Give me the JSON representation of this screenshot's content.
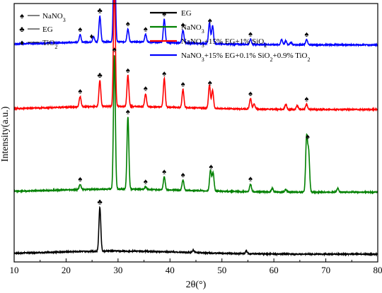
{
  "chart_data": {
    "type": "line",
    "xlabel": "2θ(°)",
    "ylabel": "Intensity(a.u.)",
    "xlim": [
      10,
      80
    ],
    "x_ticks": [
      10,
      20,
      30,
      40,
      50,
      60,
      70,
      80
    ],
    "y_ticks_shown": false,
    "grid": false,
    "legend_placement": "top-right",
    "series": [
      {
        "name": "NaNO<sub>3</sub>+15% EG+0.1% SiO<sub>2</sub>+0.9% TiO<sub>2</sub>",
        "color": "#0000ff",
        "baseline": 0.84,
        "peaks": [
          [
            22.7,
            0.03
          ],
          [
            25.3,
            0.02
          ],
          [
            26.5,
            0.1
          ],
          [
            29.3,
            0.42
          ],
          [
            31.9,
            0.05
          ],
          [
            35.3,
            0.03
          ],
          [
            38.9,
            0.09
          ],
          [
            42.5,
            0.05
          ],
          [
            47.6,
            0.08
          ],
          [
            48.2,
            0.07
          ],
          [
            55.5,
            0.02
          ],
          [
            61.5,
            0.02
          ],
          [
            62.3,
            0.015
          ],
          [
            63.3,
            0.01
          ],
          [
            66.3,
            0.02
          ]
        ]
      },
      {
        "name": "NaNO<sub>3</sub>+15% EG+1% SiO<sub>2</sub>",
        "color": "#ff0000",
        "baseline": 0.59,
        "peaks": [
          [
            22.7,
            0.04
          ],
          [
            26.5,
            0.1
          ],
          [
            29.3,
            0.48
          ],
          [
            31.9,
            0.12
          ],
          [
            35.3,
            0.05
          ],
          [
            38.9,
            0.11
          ],
          [
            42.5,
            0.07
          ],
          [
            47.6,
            0.09
          ],
          [
            48.2,
            0.07
          ],
          [
            55.5,
            0.04
          ],
          [
            56.2,
            0.02
          ],
          [
            62.3,
            0.02
          ],
          [
            64.5,
            0.015
          ],
          [
            66.3,
            0.02
          ]
        ]
      },
      {
        "name": "NaNO<sub>3</sub>",
        "color": "#008000",
        "baseline": 0.27,
        "peaks": [
          [
            22.7,
            0.02
          ],
          [
            29.3,
            0.52
          ],
          [
            31.9,
            0.28
          ],
          [
            35.3,
            0.01
          ],
          [
            38.9,
            0.05
          ],
          [
            42.5,
            0.04
          ],
          [
            47.8,
            0.08
          ],
          [
            48.3,
            0.07
          ],
          [
            55.5,
            0.03
          ],
          [
            59.7,
            0.015
          ],
          [
            62.3,
            0.01
          ],
          [
            66.3,
            0.21
          ],
          [
            66.7,
            0.15
          ],
          [
            72.3,
            0.015
          ]
        ]
      },
      {
        "name": "EG",
        "color": "#000000",
        "baseline": 0.03,
        "peaks": [
          [
            26.5,
            0.17
          ],
          [
            44.5,
            0.01
          ],
          [
            54.7,
            0.01
          ]
        ]
      }
    ],
    "peak_markers": [
      {
        "symbol": "♠",
        "x": 22.7,
        "series": 0
      },
      {
        "symbol": "♦",
        "x": 24.9,
        "series": 0
      },
      {
        "symbol": "♣",
        "x": 26.5,
        "series": 0
      },
      {
        "symbol": "♠",
        "x": 29.3,
        "series": 0
      },
      {
        "symbol": "♠",
        "x": 31.9,
        "series": 0
      },
      {
        "symbol": "♠",
        "x": 35.3,
        "series": 0
      },
      {
        "symbol": "♠",
        "x": 38.9,
        "series": 0
      },
      {
        "symbol": "♠",
        "x": 42.5,
        "series": 0
      },
      {
        "symbol": "♠",
        "x": 47.7,
        "series": 0
      },
      {
        "symbol": "♠",
        "x": 55.5,
        "series": 0
      },
      {
        "symbol": "♠",
        "x": 66.3,
        "series": 0
      },
      {
        "symbol": "♠",
        "x": 22.7,
        "series": 1
      },
      {
        "symbol": "♣",
        "x": 26.5,
        "series": 1
      },
      {
        "symbol": "♠",
        "x": 29.3,
        "series": 1
      },
      {
        "symbol": "♠",
        "x": 31.9,
        "series": 1
      },
      {
        "symbol": "♠",
        "x": 35.3,
        "series": 1
      },
      {
        "symbol": "♠",
        "x": 38.9,
        "series": 1
      },
      {
        "symbol": "♠",
        "x": 42.5,
        "series": 1
      },
      {
        "symbol": "♠",
        "x": 47.7,
        "series": 1
      },
      {
        "symbol": "♠",
        "x": 55.5,
        "series": 1
      },
      {
        "symbol": "♠",
        "x": 66.3,
        "series": 1
      },
      {
        "symbol": "♠",
        "x": 22.7,
        "series": 2
      },
      {
        "symbol": "♠",
        "x": 29.3,
        "series": 2
      },
      {
        "symbol": "♠",
        "x": 31.9,
        "series": 2
      },
      {
        "symbol": "♠",
        "x": 35.3,
        "series": 2
      },
      {
        "symbol": "♠",
        "x": 38.9,
        "series": 2
      },
      {
        "symbol": "♠",
        "x": 42.5,
        "series": 2
      },
      {
        "symbol": "♠",
        "x": 47.9,
        "series": 2
      },
      {
        "symbol": "♠",
        "x": 55.5,
        "series": 2
      },
      {
        "symbol": "♠",
        "x": 66.5,
        "series": 2
      },
      {
        "symbol": "♣",
        "x": 26.5,
        "series": 3
      }
    ],
    "marker_legend": [
      {
        "symbol": "♠",
        "label": "NaNO<sub>3</sub>"
      },
      {
        "symbol": "♣",
        "label": "EG"
      },
      {
        "symbol": "♦",
        "label": "TiO<sub>2</sub>"
      }
    ],
    "line_legend_order": [
      3,
      2,
      1,
      0
    ]
  }
}
